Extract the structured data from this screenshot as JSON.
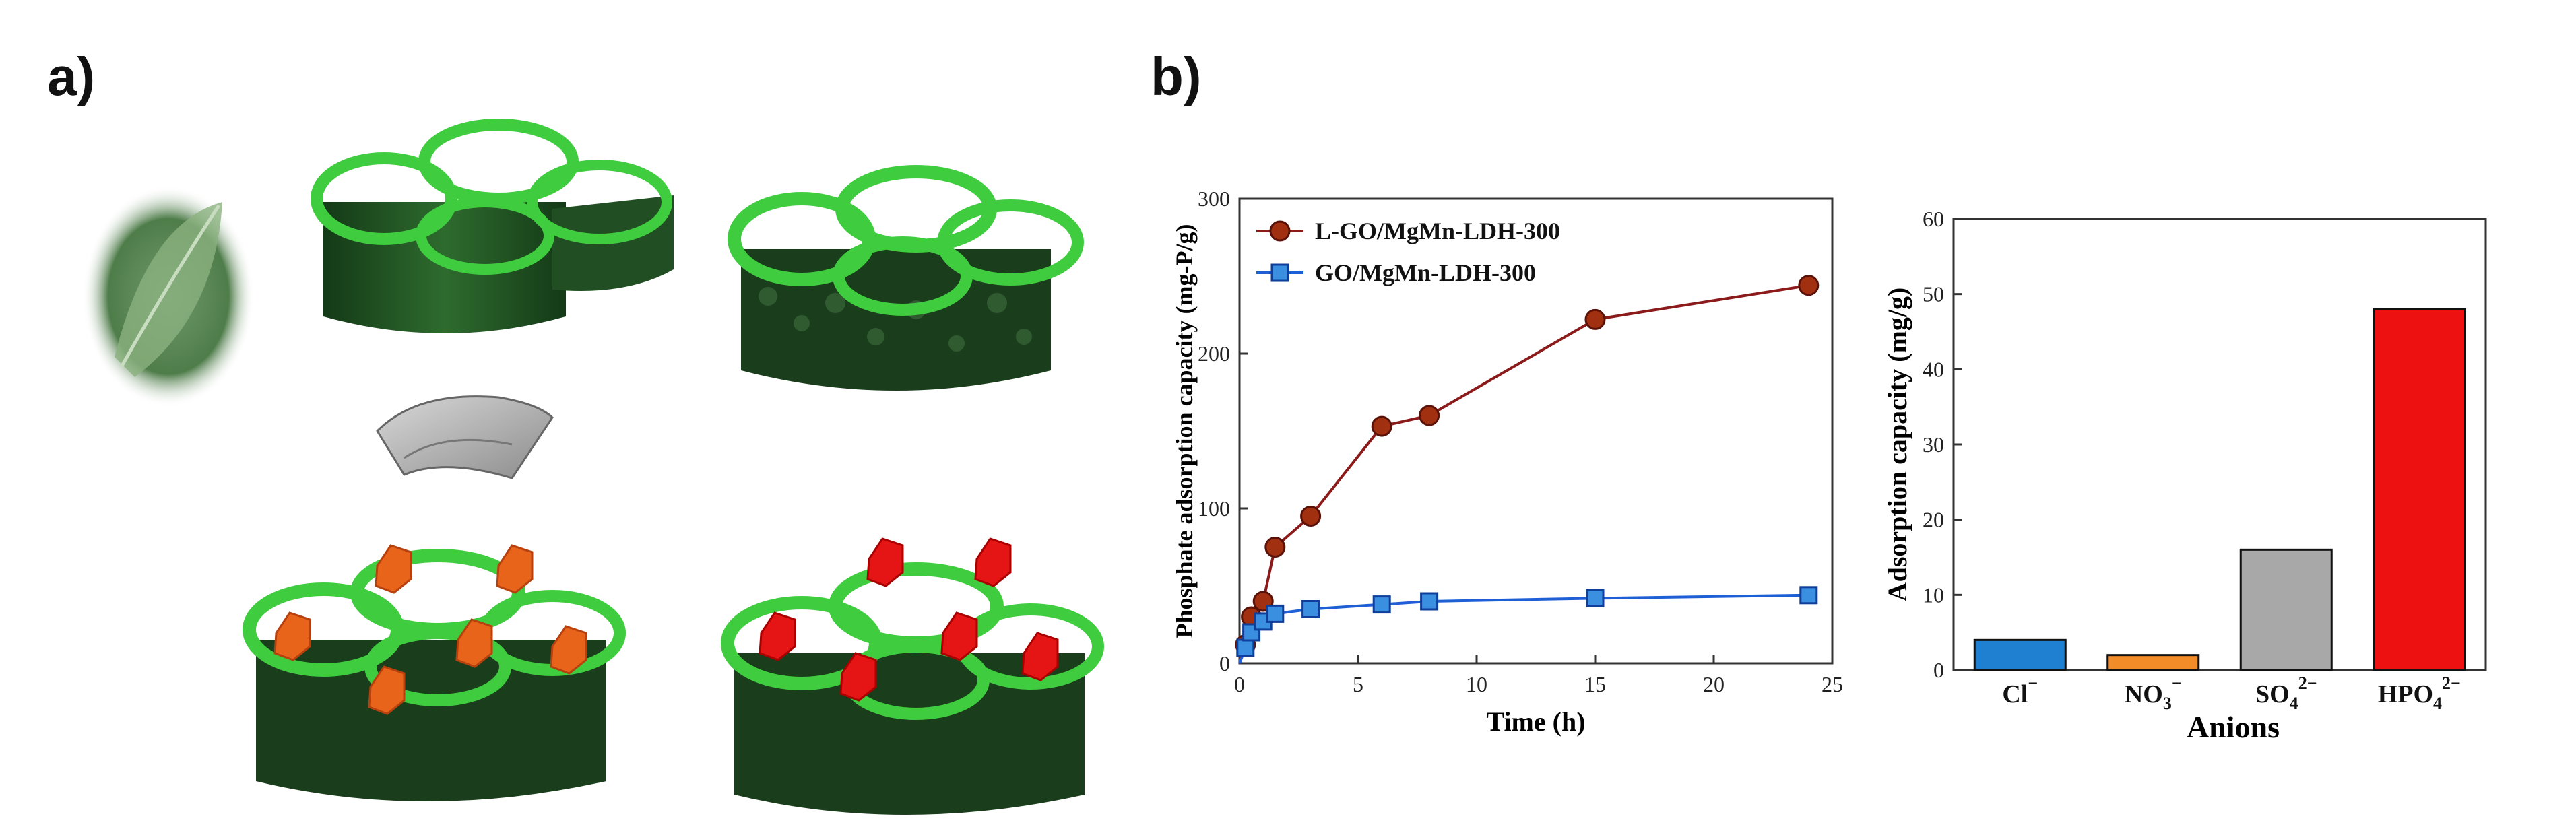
{
  "panels": {
    "a_label": "a)",
    "b_label": "b)"
  },
  "illustrations": [
    {
      "name": "leaf-photo",
      "description_visible": false
    },
    {
      "name": "leaf-3d-scaffold"
    },
    {
      "name": "graphene-oxide-sheet"
    },
    {
      "name": "graphene-coated-scaffold"
    },
    {
      "name": "ldh-loaded-scaffold"
    },
    {
      "name": "ldh-loaded-scaffold-red"
    }
  ],
  "colors": {
    "series1": "#8b1a1a",
    "series1_marker": "#a0300f",
    "series2": "#1e5fd6",
    "series2_marker": "#3b8fe0",
    "bar_cl": "#1f7fd0",
    "bar_no3": "#f28c28",
    "bar_so4": "#a8a8a8",
    "bar_hpo4": "#ee1111",
    "scaffold_dark": "#1f4a22",
    "scaffold_light": "#3fcc3f",
    "ldh_orange": "#e8641b",
    "ldh_red": "#e51515"
  },
  "chart_data": [
    {
      "type": "line",
      "title": "",
      "xlabel": "Time (h)",
      "ylabel": "Phosphate adsorption capacity (mg-P/g)",
      "xlim": [
        0,
        25
      ],
      "ylim": [
        0,
        300
      ],
      "xticks": [
        0,
        5,
        10,
        15,
        20,
        25
      ],
      "yticks": [
        0,
        100,
        200,
        300
      ],
      "legend": "top-left",
      "series": [
        {
          "name": "L-GO/MgMn-LDH-300",
          "x": [
            0,
            0.25,
            0.5,
            1,
            1.5,
            3,
            6,
            8,
            15,
            24
          ],
          "y": [
            0,
            12,
            30,
            40,
            75,
            95,
            153,
            160,
            222,
            244
          ]
        },
        {
          "name": "GO/MgMn-LDH-300",
          "x": [
            0,
            0.25,
            0.5,
            1,
            1.5,
            3,
            6,
            8,
            15,
            24
          ],
          "y": [
            0,
            10,
            20,
            27,
            32,
            35,
            38,
            40,
            42,
            44
          ]
        }
      ]
    },
    {
      "type": "bar",
      "title": "",
      "xlabel": "Anions",
      "ylabel": "Adsorption capacity (mg/g)",
      "ylim": [
        0,
        60
      ],
      "yticks": [
        0,
        10,
        20,
        30,
        40,
        50,
        60
      ],
      "categories": [
        {
          "base": "Cl",
          "sub": "",
          "sup": "−"
        },
        {
          "base": "NO",
          "sub": "3",
          "sup": "−"
        },
        {
          "base": "SO",
          "sub": "4",
          "sup": "2−"
        },
        {
          "base": "HPO",
          "sub": "4",
          "sup": "2−"
        }
      ],
      "values": [
        4,
        2,
        16,
        48
      ]
    }
  ]
}
